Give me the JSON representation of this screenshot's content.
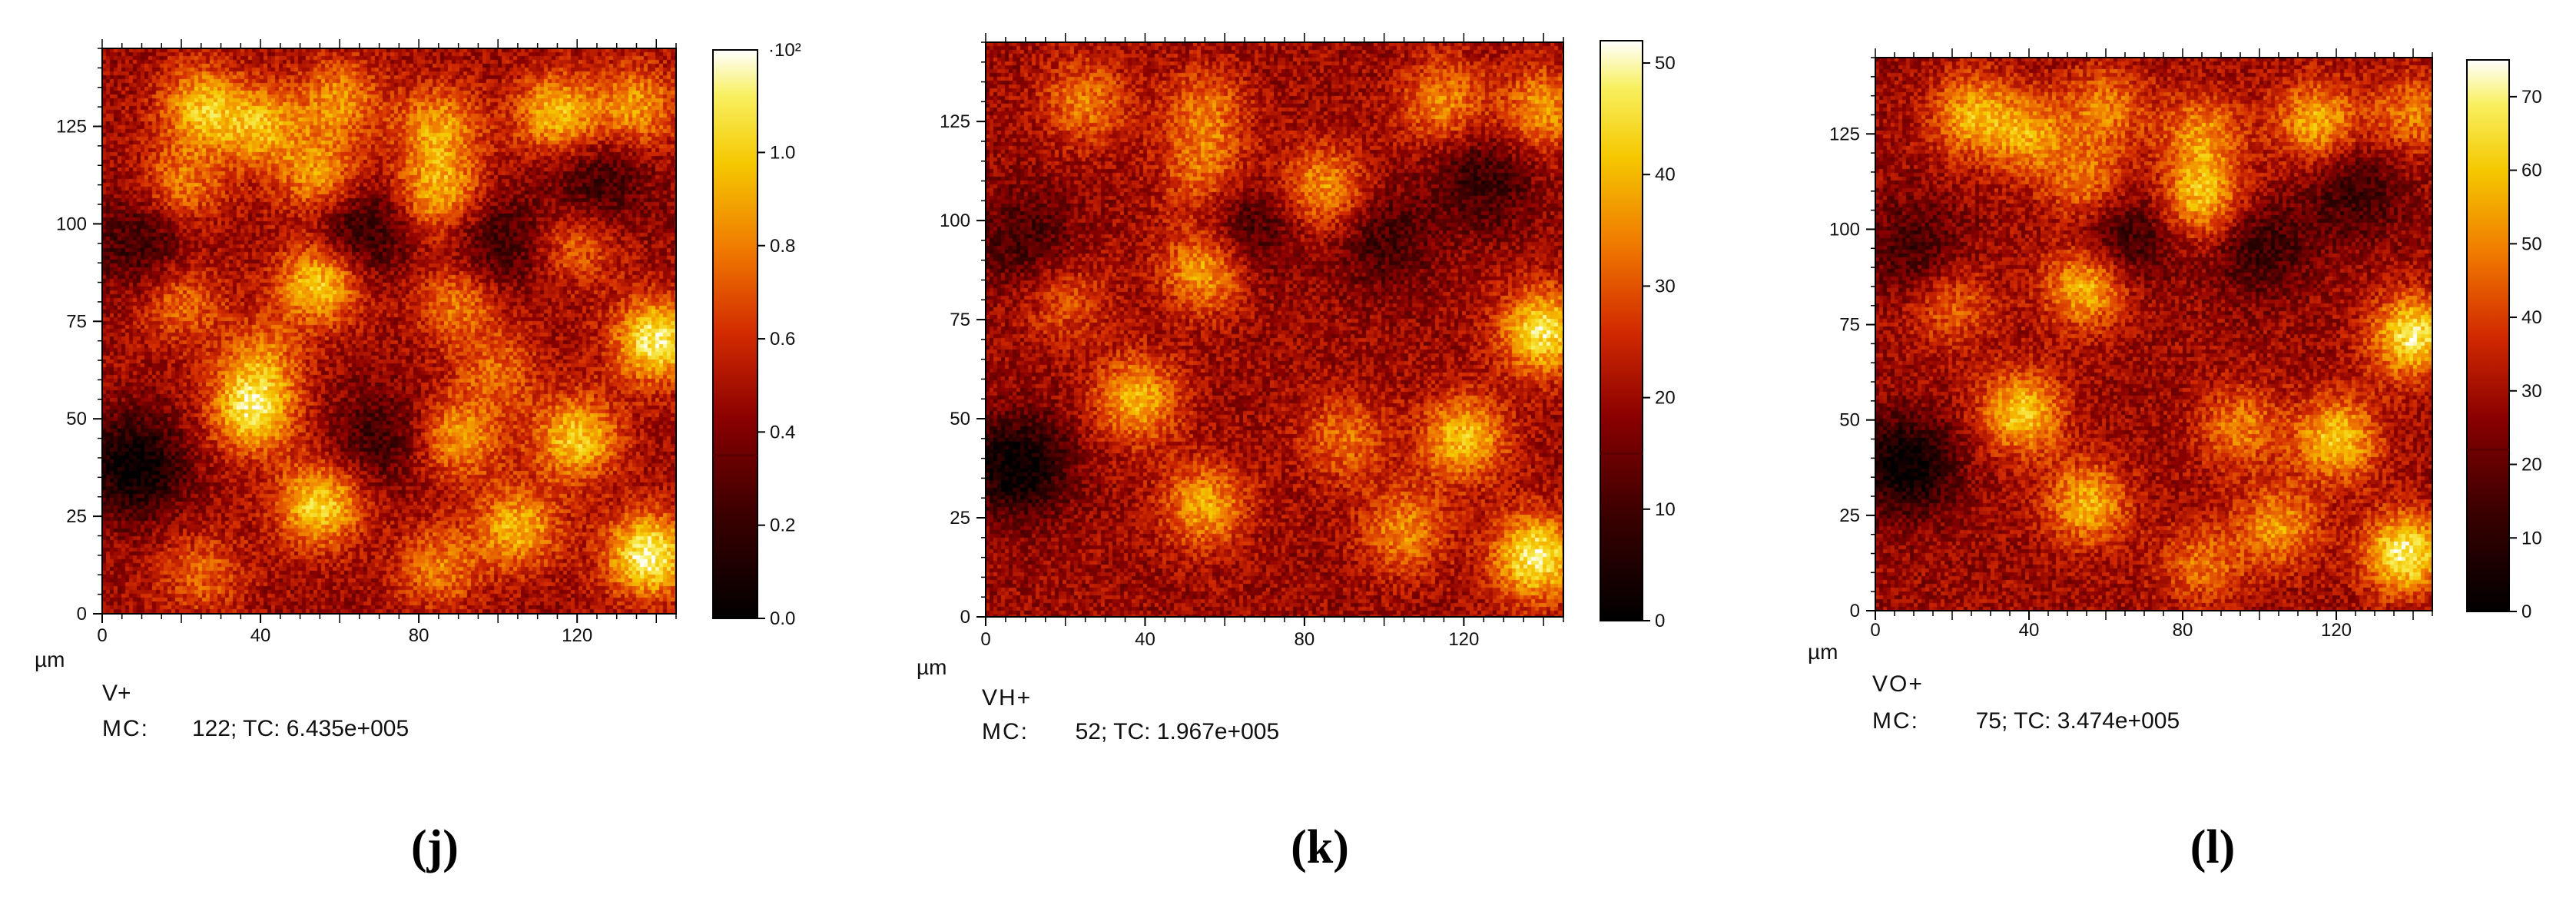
{
  "panels": [
    {
      "id": "j",
      "label": "(j)",
      "ion": "V+",
      "mc_label": "MC:",
      "mc_value": "122",
      "tc_label": "TC: 6.435e+005",
      "unit": "µm",
      "colorbar_multiplier": "·10²"
    },
    {
      "id": "k",
      "label": "(k)",
      "ion": "VH+",
      "mc_label": "MC:",
      "mc_value": "52",
      "tc_label": "TC: 1.967e+005",
      "unit": "µm",
      "colorbar_multiplier": ""
    },
    {
      "id": "l",
      "label": "(l)",
      "ion": "VO+",
      "mc_label": "MC:",
      "mc_value": "75",
      "tc_label": "TC: 3.474e+005",
      "unit": "µm",
      "colorbar_multiplier": ""
    }
  ],
  "chart_data": [
    {
      "type": "heatmap",
      "title": "V+",
      "xlabel": "µm",
      "ylabel": "",
      "xlim": [
        0,
        145
      ],
      "ylim": [
        0,
        145
      ],
      "x_ticks": [
        "0",
        "40",
        "80",
        "120"
      ],
      "y_ticks": [
        "0",
        "25",
        "50",
        "75",
        "100",
        "125"
      ],
      "colorbar_ticks": [
        "0.0",
        "0.2",
        "0.4",
        "0.6",
        "0.8",
        "1.0"
      ],
      "colorbar_max_label": "10²",
      "colorbar_range": [
        0,
        1.22
      ],
      "colorbar_threshold": 0.35,
      "colormap": "hot",
      "hotspots": [
        {
          "x": 25,
          "y": 130,
          "v": 0.7
        },
        {
          "x": 40,
          "y": 125,
          "v": 0.65
        },
        {
          "x": 60,
          "y": 132,
          "v": 0.55
        },
        {
          "x": 85,
          "y": 125,
          "v": 0.6
        },
        {
          "x": 115,
          "y": 128,
          "v": 0.75
        },
        {
          "x": 135,
          "y": 130,
          "v": 0.6
        },
        {
          "x": 20,
          "y": 110,
          "v": 0.5
        },
        {
          "x": 55,
          "y": 112,
          "v": 0.6
        },
        {
          "x": 85,
          "y": 108,
          "v": 0.7
        },
        {
          "x": 55,
          "y": 85,
          "v": 0.85
        },
        {
          "x": 20,
          "y": 80,
          "v": 0.45
        },
        {
          "x": 90,
          "y": 80,
          "v": 0.5
        },
        {
          "x": 140,
          "y": 70,
          "v": 1.0
        },
        {
          "x": 40,
          "y": 65,
          "v": 0.45
        },
        {
          "x": 100,
          "y": 62,
          "v": 0.4
        },
        {
          "x": 38,
          "y": 52,
          "v": 0.9
        },
        {
          "x": 90,
          "y": 45,
          "v": 0.6
        },
        {
          "x": 120,
          "y": 45,
          "v": 0.8
        },
        {
          "x": 55,
          "y": 28,
          "v": 0.85
        },
        {
          "x": 105,
          "y": 22,
          "v": 0.7
        },
        {
          "x": 138,
          "y": 15,
          "v": 1.05
        },
        {
          "x": 25,
          "y": 10,
          "v": 0.4
        },
        {
          "x": 85,
          "y": 12,
          "v": 0.5
        },
        {
          "x": 120,
          "y": 95,
          "v": 0.45
        }
      ],
      "coldspots": [
        {
          "x": 8,
          "y": 38,
          "v": 0.7
        },
        {
          "x": 65,
          "y": 98,
          "v": 0.5
        },
        {
          "x": 100,
          "y": 95,
          "v": 0.4
        },
        {
          "x": 70,
          "y": 45,
          "v": 0.35
        },
        {
          "x": 125,
          "y": 110,
          "v": 0.4
        },
        {
          "x": 10,
          "y": 95,
          "v": 0.4
        }
      ]
    },
    {
      "type": "heatmap",
      "title": "VH+",
      "xlabel": "µm",
      "ylabel": "",
      "xlim": [
        0,
        145
      ],
      "ylim": [
        0,
        145
      ],
      "x_ticks": [
        "0",
        "40",
        "80",
        "120"
      ],
      "y_ticks": [
        "0",
        "25",
        "50",
        "75",
        "100",
        "125"
      ],
      "colorbar_ticks": [
        "0",
        "10",
        "20",
        "30",
        "40",
        "50"
      ],
      "colorbar_range": [
        0,
        52
      ],
      "colorbar_threshold": 15,
      "colormap": "hot",
      "hotspots": [
        {
          "x": 25,
          "y": 130,
          "v": 0.5
        },
        {
          "x": 55,
          "y": 128,
          "v": 0.45
        },
        {
          "x": 115,
          "y": 130,
          "v": 0.55
        },
        {
          "x": 140,
          "y": 128,
          "v": 0.6
        },
        {
          "x": 55,
          "y": 112,
          "v": 0.45
        },
        {
          "x": 85,
          "y": 108,
          "v": 0.6
        },
        {
          "x": 55,
          "y": 88,
          "v": 0.7
        },
        {
          "x": 140,
          "y": 72,
          "v": 0.95
        },
        {
          "x": 38,
          "y": 55,
          "v": 0.7
        },
        {
          "x": 120,
          "y": 45,
          "v": 0.75
        },
        {
          "x": 55,
          "y": 28,
          "v": 0.65
        },
        {
          "x": 105,
          "y": 22,
          "v": 0.55
        },
        {
          "x": 138,
          "y": 15,
          "v": 1.0
        },
        {
          "x": 20,
          "y": 80,
          "v": 0.35
        },
        {
          "x": 90,
          "y": 45,
          "v": 0.45
        }
      ],
      "coldspots": [
        {
          "x": 8,
          "y": 38,
          "v": 0.7
        },
        {
          "x": 65,
          "y": 98,
          "v": 0.4
        },
        {
          "x": 100,
          "y": 95,
          "v": 0.35
        },
        {
          "x": 125,
          "y": 110,
          "v": 0.4
        },
        {
          "x": 10,
          "y": 95,
          "v": 0.35
        }
      ]
    },
    {
      "type": "heatmap",
      "title": "VO+",
      "xlabel": "µm",
      "ylabel": "",
      "xlim": [
        0,
        145
      ],
      "ylim": [
        0,
        145
      ],
      "x_ticks": [
        "0",
        "40",
        "80",
        "120"
      ],
      "y_ticks": [
        "0",
        "25",
        "50",
        "75",
        "100",
        "125"
      ],
      "colorbar_ticks": [
        "0",
        "10",
        "20",
        "30",
        "40",
        "50",
        "60",
        "70"
      ],
      "colorbar_range": [
        0,
        75
      ],
      "colorbar_threshold": 22,
      "colormap": "hot",
      "hotspots": [
        {
          "x": 25,
          "y": 130,
          "v": 0.65
        },
        {
          "x": 40,
          "y": 125,
          "v": 0.6
        },
        {
          "x": 60,
          "y": 132,
          "v": 0.5
        },
        {
          "x": 85,
          "y": 125,
          "v": 0.55
        },
        {
          "x": 115,
          "y": 128,
          "v": 0.7
        },
        {
          "x": 140,
          "y": 130,
          "v": 0.5
        },
        {
          "x": 55,
          "y": 112,
          "v": 0.5
        },
        {
          "x": 85,
          "y": 108,
          "v": 0.75
        },
        {
          "x": 55,
          "y": 85,
          "v": 0.75
        },
        {
          "x": 20,
          "y": 80,
          "v": 0.4
        },
        {
          "x": 140,
          "y": 72,
          "v": 0.95
        },
        {
          "x": 38,
          "y": 52,
          "v": 0.8
        },
        {
          "x": 120,
          "y": 45,
          "v": 0.8
        },
        {
          "x": 95,
          "y": 48,
          "v": 0.5
        },
        {
          "x": 55,
          "y": 28,
          "v": 0.7
        },
        {
          "x": 105,
          "y": 22,
          "v": 0.6
        },
        {
          "x": 138,
          "y": 15,
          "v": 1.0
        },
        {
          "x": 85,
          "y": 12,
          "v": 0.45
        }
      ],
      "coldspots": [
        {
          "x": 8,
          "y": 38,
          "v": 0.7
        },
        {
          "x": 65,
          "y": 98,
          "v": 0.45
        },
        {
          "x": 100,
          "y": 95,
          "v": 0.4
        },
        {
          "x": 125,
          "y": 110,
          "v": 0.4
        },
        {
          "x": 10,
          "y": 95,
          "v": 0.35
        }
      ]
    }
  ]
}
